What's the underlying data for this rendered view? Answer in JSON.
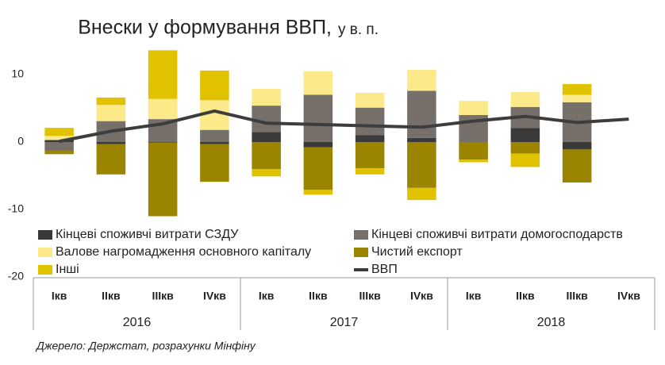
{
  "chart_data": {
    "type": "bar",
    "stacked": true,
    "title": "Внески у формування ВВП,",
    "subtitle": "у в. п.",
    "categories": [
      "Iкв",
      "IIкв",
      "IIIкв",
      "IVкв",
      "Iкв",
      "IIкв",
      "IIIкв",
      "IVкв",
      "Iкв",
      "IIкв",
      "IIIкв",
      "IVкв"
    ],
    "groups": [
      "2016",
      "2017",
      "2018"
    ],
    "series": [
      {
        "name": "Кінцеві споживчі витрати СЗДУ",
        "color": "#3a3a3a",
        "values": [
          0.3,
          -0.3,
          -0.1,
          -0.3,
          1.5,
          -0.8,
          1.0,
          0.6,
          0,
          2.1,
          -1.1,
          null
        ]
      },
      {
        "name": "Кінцеві споживчі витрати домогосподарств",
        "color": "#77706a",
        "values": [
          -1.3,
          3.1,
          3.4,
          1.8,
          3.9,
          7.0,
          4.1,
          7.0,
          4.0,
          3.1,
          5.9,
          null
        ]
      },
      {
        "name": "Валове нагромадження основного капіталу",
        "color": "#fbe98a",
        "values": [
          0.6,
          2.4,
          3.0,
          4.4,
          2.5,
          3.5,
          2.2,
          3.1,
          2.1,
          2.2,
          1.1,
          null
        ]
      },
      {
        "name": "Чистий експорт",
        "color": "#9a8400",
        "values": [
          -0.5,
          -4.5,
          -10.9,
          -5.6,
          -4.0,
          -6.3,
          -3.9,
          -6.8,
          -2.6,
          -1.7,
          -4.9,
          null
        ]
      },
      {
        "name": "Інші",
        "color": "#e0c200",
        "values": [
          1.2,
          1.1,
          7.2,
          4.4,
          -1.1,
          -0.7,
          -0.9,
          -1.8,
          -0.4,
          -2.0,
          1.6,
          null
        ]
      },
      {
        "name": "ВВП",
        "color": "#3d3d3d",
        "type": "line",
        "values": [
          0.1,
          1.6,
          2.7,
          4.6,
          2.8,
          2.6,
          2.4,
          2.2,
          3.1,
          3.8,
          2.9,
          3.4
        ]
      }
    ],
    "ylim": [
      -20,
      16
    ],
    "yticks": [
      10,
      0,
      -10,
      -20
    ],
    "grid": false,
    "source": "Джерело: Держстат, розрахунки Мінфіну"
  }
}
